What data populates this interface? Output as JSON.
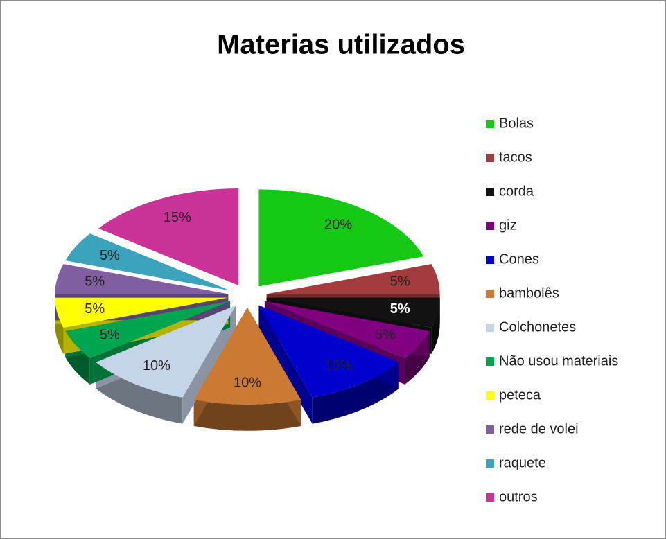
{
  "chart_data": {
    "type": "pie",
    "title": "Materias utilizados",
    "categories": [
      "Bolas",
      "tacos",
      "corda",
      "giz",
      "Cones",
      "bambolês",
      "Colchonetes",
      "Não usou materiais",
      "peteca",
      "rede de volei",
      "raquete",
      "outros"
    ],
    "values": [
      20,
      5,
      5,
      5,
      10,
      10,
      10,
      5,
      5,
      5,
      5,
      15
    ],
    "value_labels": [
      "20%",
      "5%",
      "5%",
      "5%",
      "10%",
      "10%",
      "10%",
      "5%",
      "5%",
      "5%",
      "5%",
      "15%"
    ],
    "colors": [
      "#14c814",
      "#a33d3d",
      "#121212",
      "#800080",
      "#0000cc",
      "#cc7a33",
      "#c6d4ea",
      "#00a550",
      "#ffff00",
      "#7f5fa0",
      "#3ba3bb",
      "#cc3399"
    ],
    "legend": "right"
  }
}
